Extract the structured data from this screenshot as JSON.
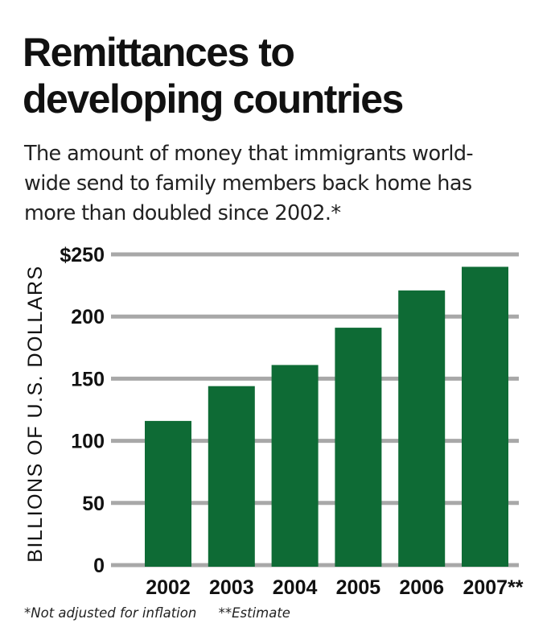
{
  "title_lines": [
    "Remittances to",
    "developing countries"
  ],
  "subtitle": "The amount of money that immigrants world- wide send to family members back home has more than doubled since 2002.*",
  "subtitle_lines": [
    "The amount of money that immigrants world-",
    "wide send to family members back home has",
    "more than doubled since 2002.*"
  ],
  "footnotes": [
    "*Not adjusted for inflation",
    "**Estimate"
  ],
  "colors": {
    "bar": "#0e6b35",
    "grid": "#a8a8a8",
    "text": "#111111",
    "background": "#ffffff"
  },
  "chart_data": {
    "type": "bar",
    "title": "Remittances to developing countries",
    "ylabel": "BILLIONS OF U.S. DOLLARS",
    "xlabel": "",
    "categories": [
      "2002",
      "2003",
      "2004",
      "2005",
      "2006",
      "2007**"
    ],
    "values": [
      116,
      144,
      161,
      191,
      221,
      240
    ],
    "ylim": [
      0,
      250
    ],
    "yticks": [
      0,
      50,
      100,
      150,
      200,
      250
    ],
    "ytick_labels": [
      "0",
      "50",
      "100",
      "150",
      "200",
      "$250"
    ],
    "grid": true,
    "legend": "none"
  }
}
